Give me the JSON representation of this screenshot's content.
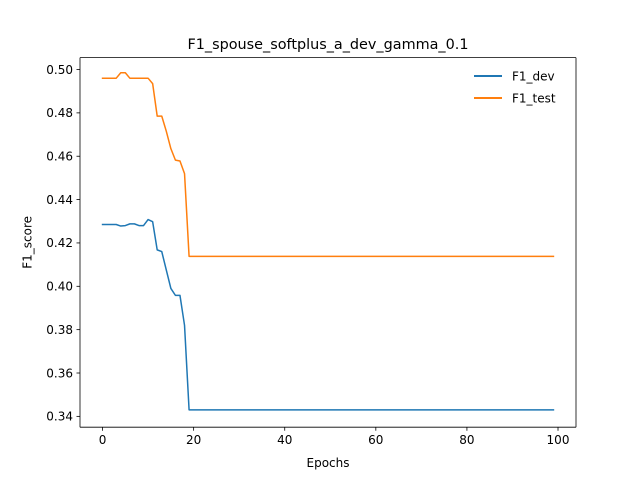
{
  "chart_data": {
    "type": "line",
    "title": "F1_spouse_softplus_a_dev_gamma_0.1",
    "xlabel": "Epochs",
    "ylabel": "F1_score",
    "xlim": [
      -4.95,
      103.95
    ],
    "ylim": [
      0.335,
      0.5055
    ],
    "xticks": [
      0,
      20,
      40,
      60,
      80,
      100
    ],
    "yticks": [
      0.34,
      0.36,
      0.38,
      0.4,
      0.42,
      0.44,
      0.46,
      0.48,
      0.5
    ],
    "xtick_labels": [
      "0",
      "20",
      "40",
      "60",
      "80",
      "100"
    ],
    "ytick_labels": [
      "0.34",
      "0.36",
      "0.38",
      "0.40",
      "0.42",
      "0.44",
      "0.46",
      "0.48",
      "0.50"
    ],
    "grid": false,
    "legend_position": "upper right",
    "series": [
      {
        "name": "F1_dev",
        "color": "#1f77b4",
        "x": [
          0,
          1,
          2,
          3,
          4,
          5,
          6,
          7,
          8,
          9,
          10,
          11,
          12,
          13,
          14,
          15,
          16,
          17,
          18,
          19,
          20,
          99
        ],
        "values": [
          0.4285,
          0.4285,
          0.4285,
          0.4285,
          0.4278,
          0.428,
          0.4288,
          0.4288,
          0.428,
          0.428,
          0.4308,
          0.4298,
          0.4168,
          0.416,
          0.4075,
          0.399,
          0.3958,
          0.3958,
          0.382,
          0.343,
          0.343,
          0.343
        ]
      },
      {
        "name": "F1_test",
        "color": "#ff7f0e",
        "x": [
          0,
          1,
          2,
          3,
          4,
          5,
          6,
          7,
          8,
          9,
          10,
          11,
          12,
          13,
          14,
          15,
          16,
          17,
          18,
          19,
          20,
          99
        ],
        "values": [
          0.496,
          0.496,
          0.496,
          0.496,
          0.4985,
          0.4985,
          0.496,
          0.496,
          0.496,
          0.496,
          0.496,
          0.4935,
          0.4785,
          0.4785,
          0.4715,
          0.4635,
          0.4582,
          0.4578,
          0.452,
          0.4138,
          0.4138,
          0.4138
        ]
      }
    ]
  }
}
